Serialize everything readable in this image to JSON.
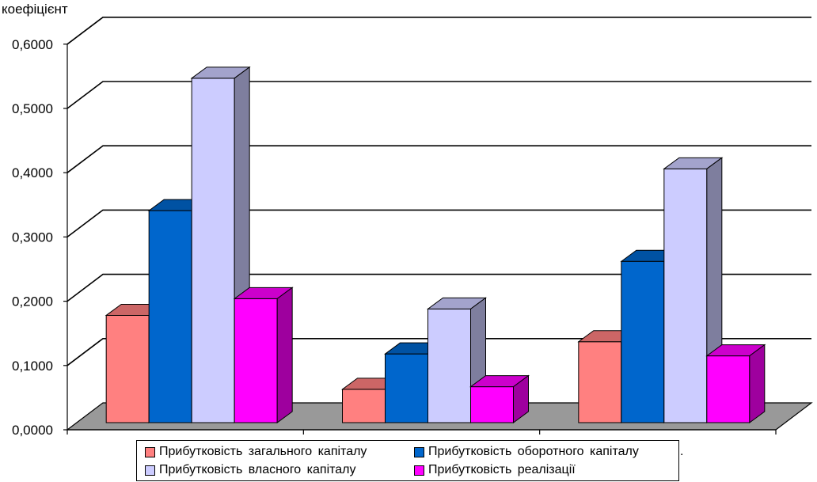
{
  "chart_data": {
    "type": "bar",
    "ylabel": "коефіцієнт",
    "ylim": [
      0,
      0.6
    ],
    "yticks": [
      "0,0000",
      "0,1000",
      "0,2000",
      "0,3000",
      "0,4000",
      "0,5000",
      "0,6000"
    ],
    "categories": [
      "",
      "",
      ""
    ],
    "series": [
      {
        "name": "Прибутковість загального капіталу",
        "color": "#ff8080",
        "values": [
          0.178,
          0.063,
          0.137
        ]
      },
      {
        "name": "Прибутковість оборотного капіталу",
        "color": "#0066cc",
        "values": [
          0.341,
          0.118,
          0.262
        ]
      },
      {
        "name": "Прибутковість власного капіталу",
        "color": "#ccccff",
        "values": [
          0.547,
          0.188,
          0.406
        ]
      },
      {
        "name": "Прибутковість реалізації",
        "color": "#ff00ff",
        "values": [
          0.204,
          0.067,
          0.115
        ]
      }
    ],
    "grid": true,
    "legend_position": "bottom",
    "floor_color": "#999999",
    "legend_trailing_mark": "."
  }
}
